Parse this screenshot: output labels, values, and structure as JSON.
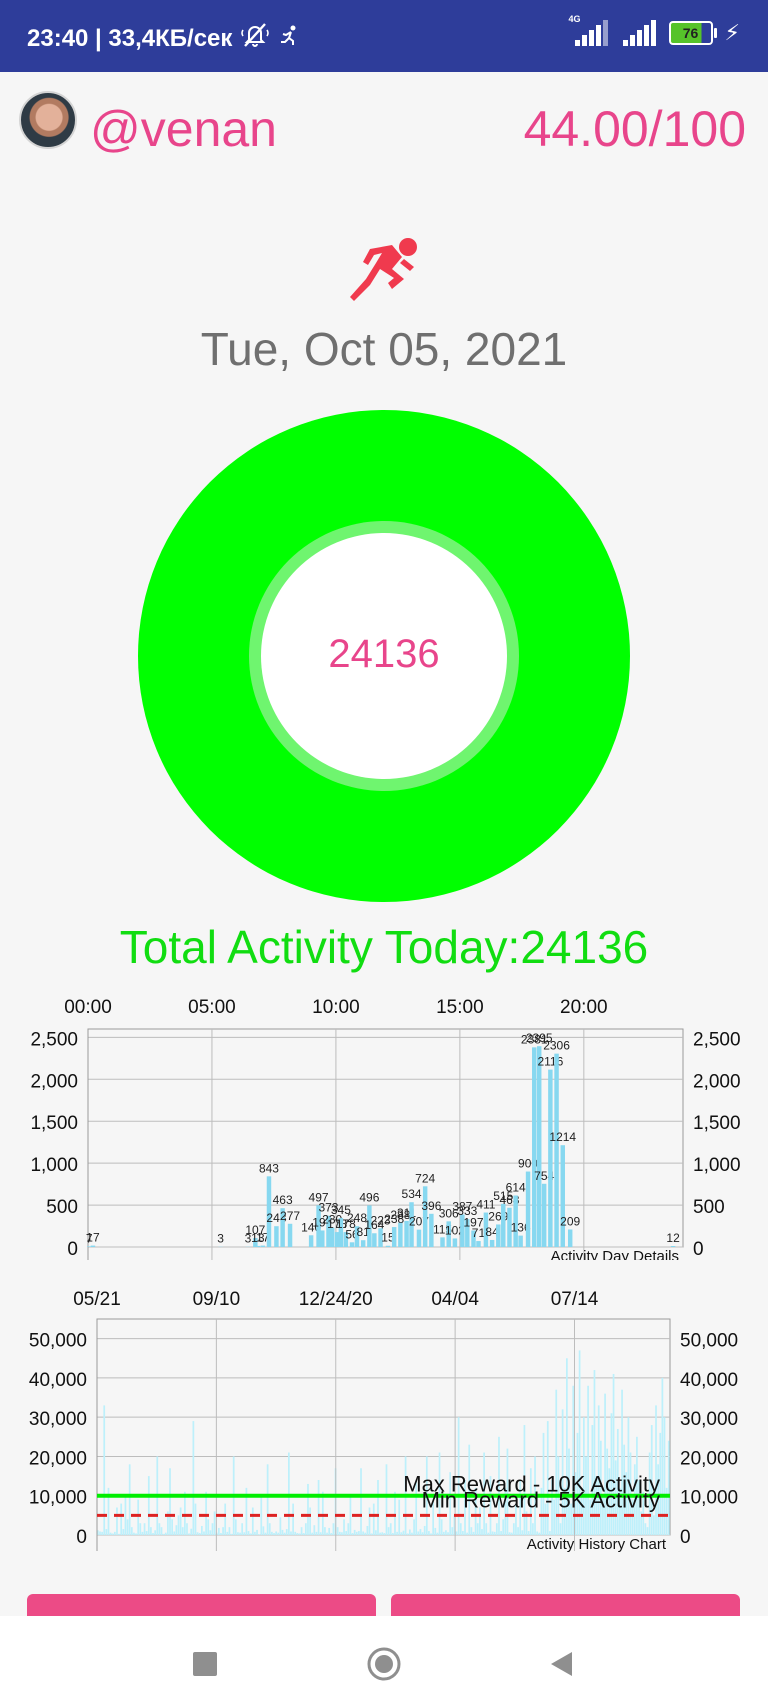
{
  "status_bar": {
    "time_network": "23:40 | 33,4КБ/сек",
    "network_type": "4G",
    "battery": "76"
  },
  "header": {
    "username": "@venan",
    "score": "44.00/100"
  },
  "main": {
    "date": "Tue, Oct 05, 2021",
    "steps_center": "24136",
    "total_activity": "Total Activity Today:24136",
    "goal_progress": 1.0
  },
  "colors": {
    "accent_pink": "#e8458b",
    "ring_green": "#00ff00",
    "bar_blue": "#87d8f0",
    "status_bar": "#2e3d9a"
  },
  "chart_data": [
    {
      "type": "bar",
      "title": "Activity Day Details",
      "x_tick_labels": [
        "00:00",
        "05:00",
        "10:00",
        "15:00",
        "20:00"
      ],
      "y_ticks": [
        0,
        500,
        1000,
        1500,
        2000,
        2500
      ],
      "y_tick_labels": [
        "0",
        "500",
        "1,000",
        "1,500",
        "2,000",
        "2,500"
      ],
      "ylim": [
        0,
        2600
      ],
      "x_unit": "hour",
      "xlim": [
        0,
        24
      ],
      "grid": true,
      "points": [
        {
          "x": 0.05,
          "y": 7,
          "label": "7"
        },
        {
          "x": 0.2,
          "y": 17,
          "label": "17"
        },
        {
          "x": 5.35,
          "y": 3,
          "label": "3"
        },
        {
          "x": 6.45,
          "y": 3,
          "label": "3"
        },
        {
          "x": 6.75,
          "y": 107,
          "label": "107"
        },
        {
          "x": 6.85,
          "y": 13,
          "label": "13"
        },
        {
          "x": 7.05,
          "y": 17,
          "label": "17"
        },
        {
          "x": 7.3,
          "y": 843,
          "label": "843"
        },
        {
          "x": 7.6,
          "y": 248,
          "label": "248"
        },
        {
          "x": 7.85,
          "y": 463,
          "label": "463"
        },
        {
          "x": 8.15,
          "y": 277,
          "label": "277"
        },
        {
          "x": 9.0,
          "y": 140,
          "label": "140"
        },
        {
          "x": 9.3,
          "y": 497,
          "label": "497"
        },
        {
          "x": 9.45,
          "y": 197,
          "label": "197"
        },
        {
          "x": 9.7,
          "y": 373,
          "label": "373"
        },
        {
          "x": 9.85,
          "y": 230,
          "label": "230"
        },
        {
          "x": 10.05,
          "y": 178,
          "label": "178"
        },
        {
          "x": 10.2,
          "y": 345,
          "label": "345"
        },
        {
          "x": 10.4,
          "y": 178,
          "label": "178"
        },
        {
          "x": 10.65,
          "y": 56,
          "label": "56"
        },
        {
          "x": 10.85,
          "y": 248,
          "label": "248"
        },
        {
          "x": 11.1,
          "y": 81,
          "label": "81"
        },
        {
          "x": 11.35,
          "y": 496,
          "label": "496"
        },
        {
          "x": 11.55,
          "y": 164,
          "label": "164"
        },
        {
          "x": 11.8,
          "y": 223,
          "label": "223"
        },
        {
          "x": 12.1,
          "y": 15,
          "label": "15"
        },
        {
          "x": 12.35,
          "y": 238,
          "label": "238"
        },
        {
          "x": 12.6,
          "y": 288,
          "label": "288"
        },
        {
          "x": 12.85,
          "y": 311,
          "label": "311"
        },
        {
          "x": 13.05,
          "y": 534,
          "label": "534"
        },
        {
          "x": 13.35,
          "y": 207,
          "label": "207"
        },
        {
          "x": 13.6,
          "y": 724,
          "label": "724"
        },
        {
          "x": 13.85,
          "y": 396,
          "label": "396"
        },
        {
          "x": 14.3,
          "y": 115,
          "label": "115"
        },
        {
          "x": 14.55,
          "y": 306,
          "label": "306"
        },
        {
          "x": 14.8,
          "y": 102,
          "label": "102"
        },
        {
          "x": 15.1,
          "y": 387,
          "label": "387"
        },
        {
          "x": 15.3,
          "y": 333,
          "label": "333"
        },
        {
          "x": 15.55,
          "y": 197,
          "label": "197"
        },
        {
          "x": 15.75,
          "y": 71,
          "label": "71"
        },
        {
          "x": 16.05,
          "y": 411,
          "label": "411"
        },
        {
          "x": 16.3,
          "y": 84,
          "label": "84"
        },
        {
          "x": 16.55,
          "y": 269,
          "label": "269"
        },
        {
          "x": 16.75,
          "y": 515,
          "label": "515"
        },
        {
          "x": 17.0,
          "y": 468,
          "label": "468"
        },
        {
          "x": 17.25,
          "y": 614,
          "label": "614"
        },
        {
          "x": 17.45,
          "y": 136,
          "label": "136"
        },
        {
          "x": 17.75,
          "y": 900,
          "label": "900"
        },
        {
          "x": 18.0,
          "y": 2381,
          "label": "2381"
        },
        {
          "x": 18.2,
          "y": 2395,
          "label": "2395"
        },
        {
          "x": 18.4,
          "y": 754,
          "label": "754"
        },
        {
          "x": 18.65,
          "y": 2116,
          "label": "2116"
        },
        {
          "x": 18.9,
          "y": 2306,
          "label": "2306"
        },
        {
          "x": 19.15,
          "y": 1214,
          "label": "1214"
        },
        {
          "x": 19.45,
          "y": 209,
          "label": "209"
        },
        {
          "x": 23.6,
          "y": 12,
          "label": "12"
        }
      ]
    },
    {
      "type": "bar",
      "title": "Activity History Chart",
      "x_tick_labels": [
        "05/21",
        "09/10",
        "12/24/20",
        "04/04",
        "07/14"
      ],
      "y_ticks": [
        0,
        10000,
        20000,
        30000,
        40000,
        50000
      ],
      "y_tick_labels": [
        "0",
        "10,000",
        "20,000",
        "30,000",
        "40,000",
        "50,000"
      ],
      "ylim": [
        0,
        55000
      ],
      "grid": true,
      "reference_lines": [
        {
          "label": "Max Reward - 10K Activity",
          "value": 10000,
          "color": "#00ee00",
          "style": "solid"
        },
        {
          "label": "Min Reward - 5K Activity",
          "value": 5000,
          "color": "#dd2222",
          "style": "dashed"
        }
      ],
      "daily_values": [
        1200,
        900,
        800,
        33000,
        1500,
        12000,
        600,
        400,
        800,
        7000,
        300,
        8000,
        1500,
        10000,
        4000,
        18000,
        2000,
        600,
        400,
        9000,
        3000,
        800,
        3000,
        1000,
        15000,
        2000,
        500,
        1200,
        20000,
        3000,
        2000,
        300,
        600,
        6000,
        17000,
        4000,
        900,
        2500,
        5000,
        7000,
        2000,
        11000,
        3000,
        400,
        1600,
        29000,
        8000,
        700,
        500,
        2300,
        900,
        11000,
        4000,
        1200,
        3000,
        6000,
        600,
        1800,
        500,
        2000,
        8000,
        800,
        2000,
        300,
        20000,
        4000,
        700,
        600,
        3000,
        700,
        12000,
        1000,
        400,
        7000,
        800,
        1300,
        200,
        10000,
        2200,
        600,
        18000,
        3000,
        800,
        500,
        900,
        600,
        4500,
        1300,
        600,
        1500,
        21000,
        900,
        8000,
        800,
        500,
        400,
        2000,
        500,
        3000,
        13000,
        7000,
        600,
        2500,
        800,
        14000,
        700,
        11000,
        2000,
        600,
        1800,
        500,
        3000,
        17000,
        2000,
        800,
        700,
        4000,
        1000,
        3000,
        10000,
        500,
        1300,
        800,
        1000,
        17000,
        900,
        600,
        2300,
        7000,
        400,
        8000,
        1200,
        14000,
        600,
        700,
        500,
        18000,
        2000,
        3000,
        500,
        11000,
        800,
        9000,
        700,
        1100,
        20000,
        400,
        1400,
        600,
        4000,
        14000,
        900,
        1500,
        700,
        2300,
        20000,
        1000,
        400,
        9000,
        1800,
        600,
        21000,
        4000,
        800,
        1200,
        700,
        16000,
        2000,
        5000,
        900,
        30000,
        3000,
        1000,
        14000,
        600,
        23000,
        2000,
        800,
        12000,
        3000,
        7000,
        1500,
        21000,
        3000,
        600,
        15000,
        900,
        800,
        3000,
        25000,
        1000,
        4000,
        12000,
        22000,
        700,
        600,
        3000,
        8000,
        2000,
        14000,
        1200,
        28000,
        6000,
        1000,
        17000,
        3000,
        20000,
        900,
        600,
        12000,
        26000,
        8000,
        29000,
        1000,
        14000,
        9000,
        37000,
        20000,
        3000,
        32000,
        12000,
        45000,
        22000,
        8000,
        38000,
        16000,
        26000,
        47000,
        11000,
        30000,
        20000,
        38000,
        9000,
        28000,
        42000,
        15000,
        33000,
        24000,
        10000,
        36000,
        22000,
        17000,
        31000,
        41000,
        19000,
        27000,
        12000,
        37000,
        23000,
        16000,
        30000,
        21000,
        9000,
        18000,
        25000,
        14000,
        6000,
        11000,
        3000,
        2000,
        21000,
        28000,
        5000,
        33000,
        18000,
        26000,
        40000,
        30000,
        12000,
        24000
      ]
    }
  ]
}
